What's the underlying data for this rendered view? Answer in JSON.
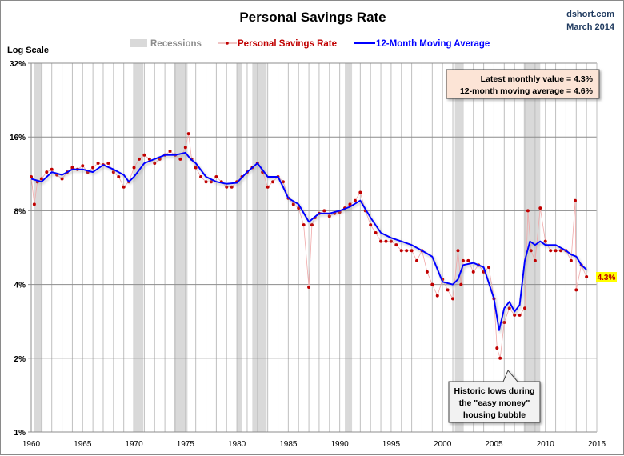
{
  "chart_data": {
    "type": "line",
    "title": "Personal Savings Rate",
    "source": "dshort.com",
    "date": "March 2014",
    "ylabel": "Log Scale",
    "xlabel": "",
    "y_scale": "log2",
    "ylim": [
      1,
      32
    ],
    "xlim": [
      1960,
      2015
    ],
    "y_ticks": [
      "32%",
      "16%",
      "8%",
      "4%",
      "2%",
      "1%"
    ],
    "y_tick_values": [
      32,
      16,
      8,
      4,
      2,
      1
    ],
    "x_ticks": [
      "1960",
      "1965",
      "1970",
      "1975",
      "1980",
      "1985",
      "1990",
      "1995",
      "2000",
      "2005",
      "2010",
      "2015"
    ],
    "x_tick_values": [
      1960,
      1965,
      1970,
      1975,
      1980,
      1985,
      1990,
      1995,
      2000,
      2005,
      2010,
      2015
    ],
    "grid": "vertical yearly lines, horizontal at y ticks",
    "legend": {
      "placement": "top-center",
      "items": [
        {
          "label": "Recessions",
          "color": "#d9d9d9",
          "kind": "band"
        },
        {
          "label": "Personal Savings Rate",
          "color": "#c00000",
          "kind": "line-marker"
        },
        {
          "label": "12-Month Moving Average",
          "color": "#0000ff",
          "kind": "line"
        }
      ]
    },
    "recessions": [
      [
        1960.3,
        1961.1
      ],
      [
        1969.9,
        1970.9
      ],
      [
        1973.9,
        1975.2
      ],
      [
        1980.0,
        1980.5
      ],
      [
        1981.5,
        1982.9
      ],
      [
        1990.5,
        1991.2
      ],
      [
        2001.2,
        2001.9
      ],
      [
        2007.9,
        2009.5
      ]
    ],
    "series": [
      {
        "name": "Personal Savings Rate",
        "color": "#c00000",
        "x": [
          1960.0,
          1960.3,
          1960.6,
          1961.0,
          1961.5,
          1962.0,
          1962.5,
          1963.0,
          1963.5,
          1964.0,
          1964.5,
          1965.0,
          1965.5,
          1966.0,
          1966.5,
          1967.0,
          1967.5,
          1968.0,
          1968.5,
          1969.0,
          1969.5,
          1970.0,
          1970.5,
          1971.0,
          1971.5,
          1972.0,
          1972.5,
          1973.0,
          1973.5,
          1974.0,
          1974.5,
          1975.0,
          1975.3,
          1975.6,
          1976.0,
          1976.5,
          1977.0,
          1977.5,
          1978.0,
          1978.5,
          1979.0,
          1979.5,
          1980.0,
          1980.5,
          1981.0,
          1981.5,
          1982.0,
          1982.5,
          1983.0,
          1983.5,
          1984.0,
          1984.5,
          1985.0,
          1985.5,
          1986.0,
          1986.5,
          1987.0,
          1987.3,
          1987.6,
          1988.0,
          1988.5,
          1989.0,
          1989.5,
          1990.0,
          1990.5,
          1991.0,
          1991.5,
          1992.0,
          1992.5,
          1993.0,
          1993.5,
          1994.0,
          1994.5,
          1995.0,
          1995.5,
          1996.0,
          1996.5,
          1997.0,
          1997.5,
          1998.0,
          1998.5,
          1999.0,
          1999.5,
          2000.0,
          2000.5,
          2001.0,
          2001.5,
          2001.8,
          2002.0,
          2002.5,
          2003.0,
          2003.5,
          2004.0,
          2004.5,
          2005.0,
          2005.3,
          2005.6,
          2006.0,
          2006.5,
          2007.0,
          2007.5,
          2008.0,
          2008.3,
          2008.6,
          2009.0,
          2009.5,
          2010.0,
          2010.5,
          2011.0,
          2011.5,
          2012.0,
          2012.5,
          2012.9,
          2013.0,
          2013.5,
          2014.0
        ],
        "values": [
          11.0,
          8.5,
          10.5,
          10.8,
          11.5,
          11.8,
          11.2,
          10.8,
          11.5,
          12.0,
          11.8,
          12.2,
          11.5,
          12.0,
          12.5,
          12.3,
          12.5,
          11.5,
          11.0,
          10.0,
          10.5,
          12.0,
          13.0,
          13.5,
          13.0,
          12.5,
          13.0,
          13.5,
          14.0,
          13.5,
          13.0,
          14.5,
          16.5,
          13.0,
          12.0,
          11.0,
          10.5,
          10.5,
          11.0,
          10.5,
          10.0,
          10.0,
          10.5,
          11.0,
          11.5,
          12.0,
          12.5,
          11.5,
          10.0,
          10.5,
          11.0,
          10.5,
          9.0,
          8.5,
          8.2,
          7.0,
          3.9,
          7.0,
          7.5,
          7.8,
          8.0,
          7.6,
          7.8,
          7.9,
          8.2,
          8.5,
          8.8,
          9.5,
          8.0,
          7.0,
          6.5,
          6.0,
          6.0,
          6.0,
          5.8,
          5.5,
          5.5,
          5.5,
          5.0,
          5.5,
          4.5,
          4.0,
          3.6,
          4.2,
          3.8,
          3.5,
          5.5,
          4.0,
          5.0,
          5.0,
          4.5,
          4.8,
          4.5,
          4.7,
          3.5,
          2.2,
          2.0,
          2.8,
          3.2,
          3.0,
          3.0,
          3.2,
          8.0,
          5.5,
          5.0,
          8.2,
          6.0,
          5.5,
          5.5,
          5.5,
          5.5,
          5.0,
          8.8,
          3.8,
          4.8,
          4.3
        ]
      },
      {
        "name": "12-Month Moving Average",
        "color": "#0000ff",
        "x": [
          1960.0,
          1961.0,
          1962.0,
          1963.0,
          1964.0,
          1965.0,
          1966.0,
          1967.0,
          1968.0,
          1969.0,
          1969.5,
          1970.0,
          1971.0,
          1972.0,
          1973.0,
          1974.0,
          1975.0,
          1975.5,
          1976.0,
          1977.0,
          1978.0,
          1979.0,
          1980.0,
          1981.0,
          1982.0,
          1983.0,
          1984.0,
          1984.5,
          1985.0,
          1986.0,
          1987.0,
          1987.5,
          1988.0,
          1989.0,
          1990.0,
          1991.0,
          1992.0,
          1993.0,
          1994.0,
          1995.0,
          1996.0,
          1997.0,
          1998.0,
          1999.0,
          2000.0,
          2001.0,
          2001.5,
          2002.0,
          2003.0,
          2004.0,
          2005.0,
          2005.5,
          2006.0,
          2006.5,
          2007.0,
          2007.5,
          2008.0,
          2008.5,
          2009.0,
          2009.5,
          2010.0,
          2011.0,
          2012.0,
          2012.5,
          2013.0,
          2013.5,
          2014.0
        ],
        "values": [
          10.8,
          10.5,
          11.5,
          11.2,
          11.8,
          11.8,
          11.5,
          12.3,
          11.8,
          11.2,
          10.5,
          11.0,
          12.5,
          13.0,
          13.5,
          13.5,
          13.8,
          13.0,
          12.5,
          11.0,
          10.5,
          10.3,
          10.4,
          11.5,
          12.5,
          11.0,
          11.0,
          10.0,
          9.0,
          8.5,
          7.2,
          7.5,
          7.8,
          7.8,
          8.0,
          8.3,
          8.8,
          7.5,
          6.5,
          6.2,
          6.0,
          5.8,
          5.5,
          5.2,
          4.1,
          4.0,
          4.2,
          4.8,
          4.9,
          4.7,
          3.5,
          2.6,
          3.2,
          3.4,
          3.1,
          3.3,
          5.0,
          6.0,
          5.8,
          6.0,
          5.8,
          5.8,
          5.5,
          5.3,
          5.2,
          4.8,
          4.6
        ]
      }
    ],
    "annotations": {
      "summary_box": [
        "Latest monthly value = 4.3%",
        "12-month moving average = 4.6%"
      ],
      "callout": [
        "Historic lows during",
        "the \"easy money\"",
        "housing bubble"
      ],
      "latest_label": "4.3%"
    },
    "colors": {
      "recession": "#d9d9d9",
      "savings": "#c00000",
      "moving_average": "#0000ff",
      "summary_box_fill": "#fce4d6",
      "latest_label_fill": "#ffff00"
    }
  }
}
